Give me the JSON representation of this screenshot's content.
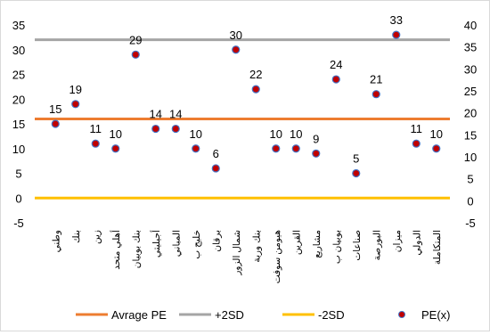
{
  "chart_data": {
    "type": "scatter",
    "title": "",
    "xlabel": "",
    "ylabel": "",
    "ylim": [
      -5,
      35
    ],
    "y2lim": [
      -5,
      40
    ],
    "yticks": [
      "-5",
      "0",
      "5",
      "10",
      "15",
      "20",
      "25",
      "30",
      "35"
    ],
    "y2ticks": [
      "-5",
      "0",
      "5",
      "10",
      "15",
      "20",
      "25",
      "30",
      "35",
      "40"
    ],
    "grid": false,
    "legend_position": "bottom",
    "categories": [
      "وطني",
      "بنك",
      "زين",
      "أهلي متحد",
      "بنك بوبيان",
      "أجيليتي",
      "المباني",
      "خليج ب",
      "برقان",
      "شمال الزور",
      "بنك وربة",
      "هيومن سوفت",
      "القرين",
      "مشاريع",
      "بوبيان ب",
      "صناعات",
      "البورصة",
      "ميزان",
      "الدولي",
      "المتكاملة"
    ],
    "series": [
      {
        "name": "PE(x)",
        "values": [
          15,
          19,
          11,
          10,
          29,
          14,
          14,
          10,
          6,
          30,
          22,
          10,
          10,
          9,
          24,
          5,
          21,
          33,
          11,
          10
        ],
        "labels": [
          "15",
          "19",
          "11",
          "10",
          "29",
          "14",
          "14",
          "10",
          "6",
          "30",
          "22",
          "10",
          "10",
          "9",
          "24",
          "5",
          "21",
          "33",
          "11",
          "10"
        ],
        "color": "#c00000",
        "edge_color": "#4472c4"
      },
      {
        "name": "Avrage PE",
        "value": 16,
        "color": "#ed7d31"
      },
      {
        "name": "+2SD",
        "value": 32,
        "color": "#a5a5a5"
      },
      {
        "name": "-2SD",
        "value": 0,
        "color": "#ffc000"
      }
    ]
  }
}
